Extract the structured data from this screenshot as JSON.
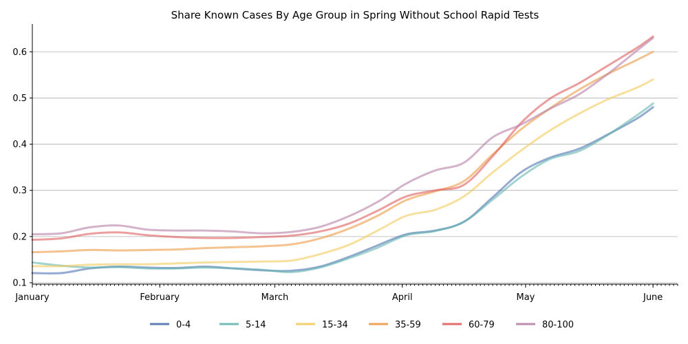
{
  "chart_data": {
    "type": "line",
    "title": "Share Known Cases By Age Group in Spring Without School Rapid Tests",
    "xlabel": "",
    "ylabel": "",
    "x_domain": [
      "2021-01-01",
      "2021-06-07"
    ],
    "ylim": [
      0.097,
      0.66
    ],
    "x_ticks": [
      {
        "date": "2021-01-01",
        "label": "January"
      },
      {
        "date": "2021-02-01",
        "label": "February"
      },
      {
        "date": "2021-03-01",
        "label": "March"
      },
      {
        "date": "2021-04-01",
        "label": "April"
      },
      {
        "date": "2021-05-01",
        "label": "May"
      },
      {
        "date": "2021-06-01",
        "label": "June"
      }
    ],
    "y_ticks": [
      {
        "value": 0.1,
        "label": "0.1"
      },
      {
        "value": 0.2,
        "label": "0.2"
      },
      {
        "value": 0.3,
        "label": "0.3"
      },
      {
        "value": 0.4,
        "label": "0.4"
      },
      {
        "value": 0.5,
        "label": "0.5"
      },
      {
        "value": 0.6,
        "label": "0.6"
      }
    ],
    "grid": "horizontal",
    "legend_position": "bottom",
    "x": [
      "2021-01-01",
      "2021-01-08",
      "2021-01-15",
      "2021-01-22",
      "2021-01-29",
      "2021-02-05",
      "2021-02-12",
      "2021-02-19",
      "2021-02-26",
      "2021-03-05",
      "2021-03-12",
      "2021-03-19",
      "2021-03-26",
      "2021-04-02",
      "2021-04-09",
      "2021-04-16",
      "2021-04-23",
      "2021-04-30",
      "2021-05-07",
      "2021-05-14",
      "2021-05-21",
      "2021-05-28",
      "2021-06-01"
    ],
    "series": [
      {
        "name": "0-4",
        "color": "#4c72b0",
        "values": [
          0.121,
          0.121,
          0.131,
          0.135,
          0.133,
          0.132,
          0.135,
          0.131,
          0.127,
          0.126,
          0.135,
          0.156,
          0.181,
          0.205,
          0.213,
          0.232,
          0.285,
          0.34,
          0.371,
          0.39,
          0.421,
          0.455,
          0.48
        ]
      },
      {
        "name": "5-14",
        "color": "#64b5b1",
        "values": [
          0.144,
          0.137,
          0.133,
          0.134,
          0.131,
          0.131,
          0.133,
          0.131,
          0.128,
          0.123,
          0.133,
          0.153,
          0.176,
          0.203,
          0.212,
          0.232,
          0.28,
          0.33,
          0.368,
          0.385,
          0.42,
          0.462,
          0.488
        ]
      },
      {
        "name": "15-34",
        "color": "#f2cc5d",
        "values": [
          0.136,
          0.136,
          0.139,
          0.14,
          0.14,
          0.142,
          0.144,
          0.145,
          0.146,
          0.148,
          0.162,
          0.182,
          0.213,
          0.245,
          0.258,
          0.287,
          0.339,
          0.387,
          0.43,
          0.466,
          0.497,
          0.522,
          0.54
        ]
      },
      {
        "name": "35-59",
        "color": "#ed9a45",
        "values": [
          0.166,
          0.168,
          0.171,
          0.17,
          0.171,
          0.172,
          0.175,
          0.177,
          0.179,
          0.183,
          0.196,
          0.217,
          0.245,
          0.279,
          0.298,
          0.32,
          0.378,
          0.433,
          0.478,
          0.518,
          0.552,
          0.582,
          0.6
        ]
      },
      {
        "name": "60-79",
        "color": "#e05b5b",
        "values": [
          0.193,
          0.196,
          0.206,
          0.209,
          0.203,
          0.199,
          0.197,
          0.197,
          0.199,
          0.202,
          0.211,
          0.228,
          0.256,
          0.287,
          0.3,
          0.312,
          0.374,
          0.447,
          0.499,
          0.532,
          0.57,
          0.608,
          0.633
        ]
      },
      {
        "name": "80-100",
        "color": "#b880a6",
        "values": [
          0.205,
          0.207,
          0.22,
          0.224,
          0.215,
          0.213,
          0.213,
          0.211,
          0.207,
          0.21,
          0.221,
          0.244,
          0.275,
          0.315,
          0.343,
          0.36,
          0.415,
          0.443,
          0.477,
          0.508,
          0.552,
          0.602,
          0.63
        ]
      }
    ]
  }
}
